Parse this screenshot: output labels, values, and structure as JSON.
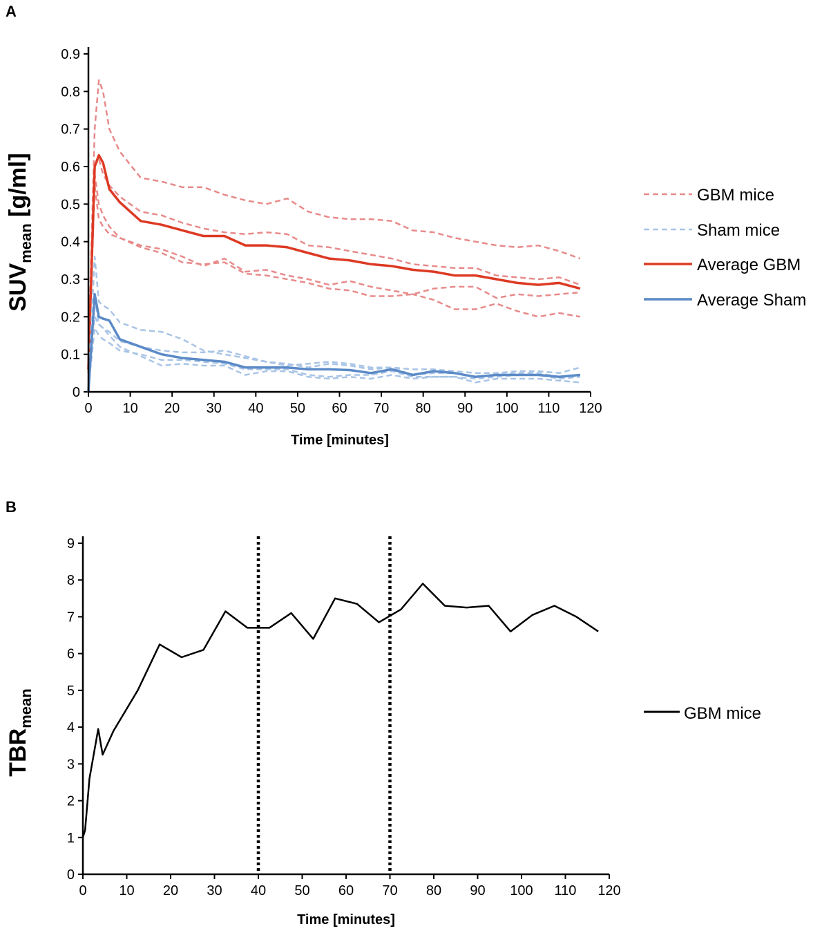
{
  "chart_data": [
    {
      "panel": "A",
      "type": "line",
      "xlabel": "Time [minutes]",
      "ylabel": "SUV",
      "ylabel_sub": "mean",
      "ylabel_suffix": " [g/ml]",
      "xlim": [
        0,
        120
      ],
      "ylim": [
        0,
        0.9
      ],
      "xticks": [
        "0",
        "10",
        "20",
        "30",
        "40",
        "50",
        "60",
        "70",
        "80",
        "90",
        "100",
        "110",
        "120"
      ],
      "yticks": [
        "0",
        "0.1",
        "0.2",
        "0.3",
        "0.4",
        "0.5",
        "0.6",
        "0.7",
        "0.8",
        "0.9"
      ],
      "legend": [
        {
          "label": "GBM mice",
          "color": "#e88a8a",
          "style": "dashed"
        },
        {
          "label": "Sham mice",
          "color": "#a9c4e6",
          "style": "dashed"
        },
        {
          "label": "Average GBM",
          "color": "#dd3a24",
          "style": "solid"
        },
        {
          "label": "Average Sham",
          "color": "#5b8ac7",
          "style": "solid"
        }
      ],
      "x": [
        0,
        1.5,
        2.5,
        3.5,
        5,
        7.5,
        12.5,
        17.5,
        22.5,
        27.5,
        32.5,
        37.5,
        42.5,
        47.5,
        52.5,
        57.5,
        62.5,
        67.5,
        72.5,
        77.5,
        82.5,
        87.5,
        92.5,
        97.5,
        102.5,
        107.5,
        112.5,
        117.5
      ],
      "series": [
        {
          "name": "GBM mouse 1",
          "group": "GBM mice",
          "values": [
            0.1,
            0.7,
            0.83,
            0.8,
            0.7,
            0.64,
            0.57,
            0.56,
            0.545,
            0.545,
            0.525,
            0.51,
            0.5,
            0.515,
            0.48,
            0.465,
            0.46,
            0.46,
            0.455,
            0.43,
            0.425,
            0.41,
            0.4,
            0.39,
            0.385,
            0.39,
            0.375,
            0.355
          ]
        },
        {
          "name": "GBM mouse 2",
          "group": "GBM mice",
          "values": [
            0.05,
            0.6,
            0.62,
            0.58,
            0.55,
            0.52,
            0.48,
            0.47,
            0.45,
            0.435,
            0.425,
            0.42,
            0.425,
            0.42,
            0.39,
            0.385,
            0.375,
            0.365,
            0.355,
            0.34,
            0.335,
            0.33,
            0.33,
            0.31,
            0.305,
            0.3,
            0.305,
            0.285
          ]
        },
        {
          "name": "GBM mouse 3",
          "group": "GBM mice",
          "values": [
            0.05,
            0.55,
            0.46,
            0.44,
            0.42,
            0.41,
            0.39,
            0.38,
            0.36,
            0.335,
            0.355,
            0.32,
            0.325,
            0.31,
            0.3,
            0.285,
            0.295,
            0.28,
            0.27,
            0.26,
            0.245,
            0.22,
            0.22,
            0.235,
            0.215,
            0.2,
            0.21,
            0.2
          ]
        },
        {
          "name": "GBM mouse 4",
          "group": "GBM mice",
          "values": [
            0.05,
            0.58,
            0.5,
            0.47,
            0.44,
            0.41,
            0.385,
            0.37,
            0.345,
            0.34,
            0.345,
            0.315,
            0.31,
            0.3,
            0.29,
            0.275,
            0.27,
            0.255,
            0.255,
            0.26,
            0.275,
            0.28,
            0.28,
            0.25,
            0.26,
            0.255,
            0.26,
            0.265
          ]
        },
        {
          "name": "Average GBM",
          "group": "Average GBM",
          "values": [
            0.06,
            0.6,
            0.63,
            0.61,
            0.54,
            0.505,
            0.455,
            0.445,
            0.43,
            0.415,
            0.415,
            0.39,
            0.39,
            0.385,
            0.37,
            0.355,
            0.35,
            0.34,
            0.335,
            0.325,
            0.32,
            0.31,
            0.31,
            0.3,
            0.29,
            0.285,
            0.29,
            0.275
          ]
        },
        {
          "name": "Sham mouse 1",
          "group": "Sham mice",
          "values": [
            0.02,
            0.36,
            0.24,
            0.23,
            0.22,
            0.185,
            0.165,
            0.16,
            0.14,
            0.11,
            0.1,
            0.09,
            0.08,
            0.07,
            0.075,
            0.08,
            0.075,
            0.065,
            0.065,
            0.06,
            0.06,
            0.055,
            0.05,
            0.05,
            0.055,
            0.055,
            0.05,
            0.065
          ]
        },
        {
          "name": "Sham mouse 2",
          "group": "Sham mice",
          "values": [
            0.01,
            0.2,
            0.18,
            0.17,
            0.16,
            0.135,
            0.12,
            0.11,
            0.105,
            0.105,
            0.11,
            0.095,
            0.08,
            0.075,
            0.065,
            0.075,
            0.07,
            0.06,
            0.065,
            0.045,
            0.05,
            0.05,
            0.04,
            0.045,
            0.05,
            0.05,
            0.04,
            0.045
          ]
        },
        {
          "name": "Sham mouse 3",
          "group": "Sham mice",
          "values": [
            0.01,
            0.17,
            0.15,
            0.14,
            0.13,
            0.11,
            0.1,
            0.085,
            0.085,
            0.08,
            0.075,
            0.06,
            0.06,
            0.06,
            0.045,
            0.04,
            0.045,
            0.045,
            0.055,
            0.04,
            0.04,
            0.04,
            0.035,
            0.04,
            0.045,
            0.045,
            0.035,
            0.04
          ]
        },
        {
          "name": "Sham mouse 4",
          "group": "Sham mice",
          "values": [
            0.01,
            0.25,
            0.18,
            0.17,
            0.15,
            0.12,
            0.095,
            0.07,
            0.075,
            0.07,
            0.07,
            0.045,
            0.055,
            0.055,
            0.04,
            0.035,
            0.04,
            0.035,
            0.045,
            0.035,
            0.04,
            0.04,
            0.025,
            0.035,
            0.035,
            0.035,
            0.03,
            0.025
          ]
        },
        {
          "name": "Average Sham",
          "group": "Average Sham",
          "values": [
            0.0,
            0.26,
            0.2,
            0.195,
            0.19,
            0.14,
            0.12,
            0.1,
            0.09,
            0.085,
            0.08,
            0.065,
            0.065,
            0.065,
            0.06,
            0.06,
            0.058,
            0.05,
            0.06,
            0.045,
            0.055,
            0.05,
            0.04,
            0.045,
            0.045,
            0.045,
            0.04,
            0.045
          ]
        }
      ]
    },
    {
      "panel": "B",
      "type": "line",
      "xlabel": "Time  [minutes]",
      "ylabel": "TBR",
      "ylabel_sub": "mean",
      "xlim": [
        0,
        120
      ],
      "ylim": [
        0,
        9
      ],
      "xticks": [
        "0",
        "10",
        "20",
        "30",
        "40",
        "50",
        "60",
        "70",
        "80",
        "90",
        "100",
        "110",
        "120"
      ],
      "yticks": [
        "0",
        "1",
        "2",
        "3",
        "4",
        "5",
        "6",
        "7",
        "8",
        "9"
      ],
      "vlines": [
        40,
        70
      ],
      "legend": [
        {
          "label": "GBM mice",
          "color": "#000000",
          "style": "solid"
        }
      ],
      "x": [
        0,
        0.5,
        1.5,
        3.5,
        4.5,
        7,
        12.5,
        17.5,
        22.5,
        27.5,
        32.5,
        37.5,
        42.5,
        47.5,
        52.5,
        57.5,
        62.5,
        67.5,
        72.5,
        77.5,
        82.5,
        87.5,
        92.5,
        97.5,
        102.5,
        107.5,
        112.5,
        117.5
      ],
      "series": [
        {
          "name": "GBM mice",
          "values": [
            1.0,
            1.2,
            2.6,
            3.95,
            3.25,
            3.9,
            5.0,
            6.25,
            5.9,
            6.1,
            7.15,
            6.7,
            6.7,
            7.1,
            6.4,
            7.5,
            7.35,
            6.85,
            7.2,
            7.9,
            7.3,
            7.25,
            7.3,
            6.6,
            7.05,
            7.3,
            7.0,
            6.6
          ]
        }
      ]
    }
  ]
}
